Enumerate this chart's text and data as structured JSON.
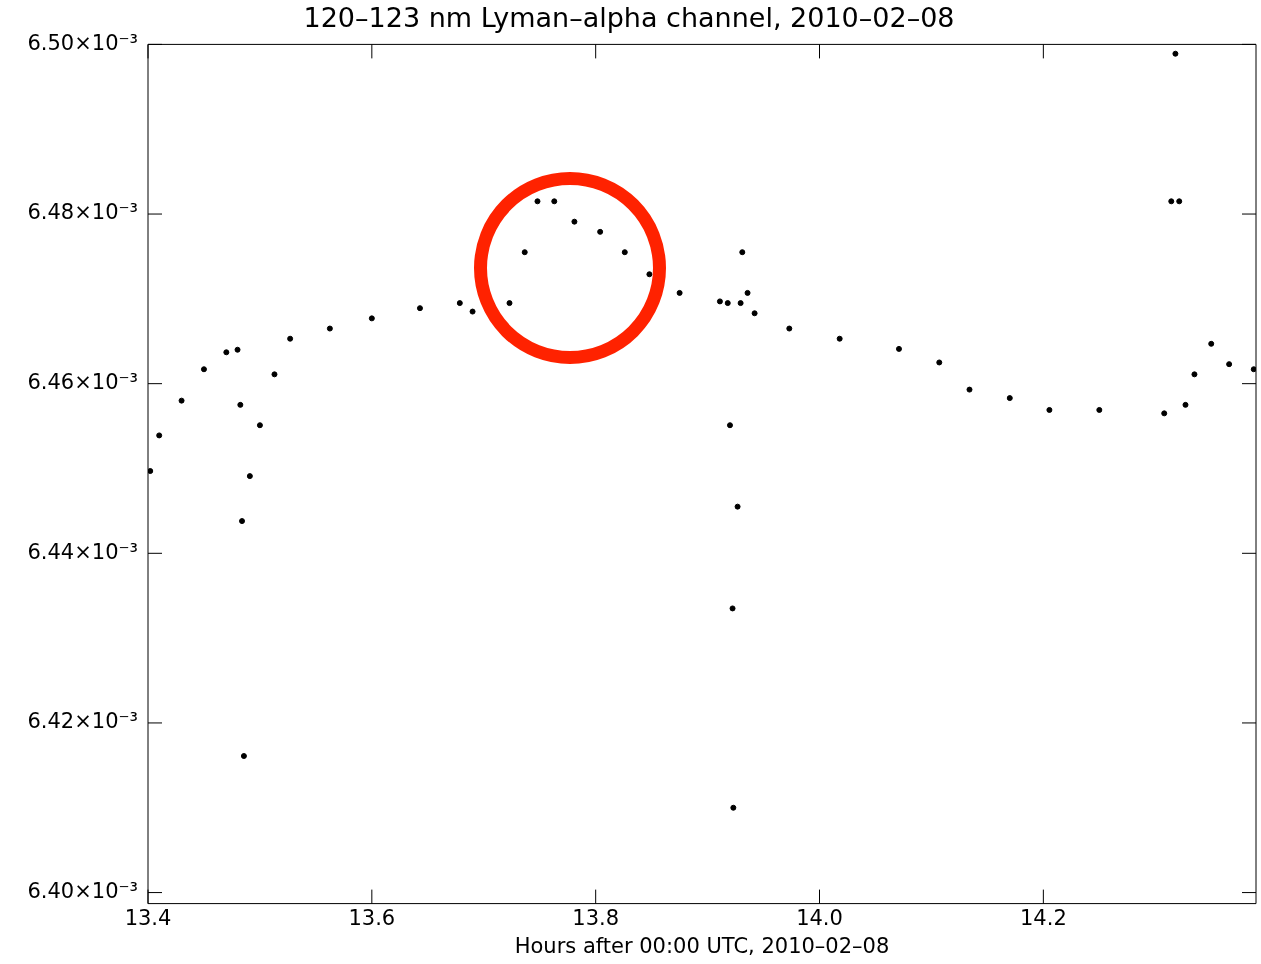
{
  "chart_data": {
    "type": "scatter",
    "title": "120–123 nm Lyman–alpha channel, 2010–02–08",
    "xlabel": "Hours after 00:00 UTC, 2010–02–08",
    "xlim": [
      13.4,
      14.39
    ],
    "xticks": [
      {
        "value": 13.4,
        "label": "13.4"
      },
      {
        "value": 13.6,
        "label": "13.6"
      },
      {
        "value": 13.8,
        "label": "13.8"
      },
      {
        "value": 14.0,
        "label": "14.0"
      },
      {
        "value": 14.2,
        "label": "14.2"
      }
    ],
    "ylim": [
      0.0063987,
      0.0065
    ],
    "yticks": [
      {
        "value": 0.0064,
        "label": "6.40×10⁻³"
      },
      {
        "value": 0.00642,
        "label": "6.42×10⁻³"
      },
      {
        "value": 0.00644,
        "label": "6.44×10⁻³"
      },
      {
        "value": 0.00646,
        "label": "6.46×10⁻³"
      },
      {
        "value": 0.00648,
        "label": "6.48×10⁻³"
      },
      {
        "value": 0.0065,
        "label": "6.50×10⁻³"
      }
    ],
    "grid": false,
    "legend": false,
    "marker": "circle",
    "series": [
      {
        "color": "#000000",
        "x": [
          13.402,
          13.41,
          13.43,
          13.45,
          13.47,
          13.48,
          13.4825,
          13.484,
          13.4857,
          13.491,
          13.5,
          13.513,
          13.527,
          13.5625,
          13.6,
          13.643,
          13.6786,
          13.69,
          13.723,
          13.7366,
          13.748,
          13.763,
          13.781,
          13.804,
          13.826,
          13.848,
          13.875,
          13.911,
          13.918,
          13.92,
          13.9223,
          13.923,
          13.9268,
          13.9295,
          13.931,
          13.9357,
          13.942,
          13.973,
          14.018,
          14.071,
          14.107,
          14.134,
          14.17,
          14.2054,
          14.25,
          14.308,
          14.3143,
          14.318,
          14.3214,
          14.327,
          14.335,
          14.35,
          14.366,
          14.388
        ],
        "values": [
          0.0064497,
          0.0064539,
          0.006458,
          0.0064617,
          0.0064637,
          0.006464,
          0.0064575,
          0.0064438,
          0.0064161,
          0.0064491,
          0.0064551,
          0.0064611,
          0.0064653,
          0.0064665,
          0.0064677,
          0.0064689,
          0.0064695,
          0.0064685,
          0.0064695,
          0.0064755,
          0.0064815,
          0.0064815,
          0.0064791,
          0.0064779,
          0.0064755,
          0.0064729,
          0.0064707,
          0.0064697,
          0.0064695,
          0.0064551,
          0.0064335,
          0.00641,
          0.0064455,
          0.0064695,
          0.0064755,
          0.0064707,
          0.0064683,
          0.0064665,
          0.0064653,
          0.0064641,
          0.0064625,
          0.0064593,
          0.0064583,
          0.0064569,
          0.0064569,
          0.0064565,
          0.0064815,
          0.0064989,
          0.0064815,
          0.0064575,
          0.0064611,
          0.0064647,
          0.0064623,
          0.0064617
        ]
      }
    ]
  }
}
